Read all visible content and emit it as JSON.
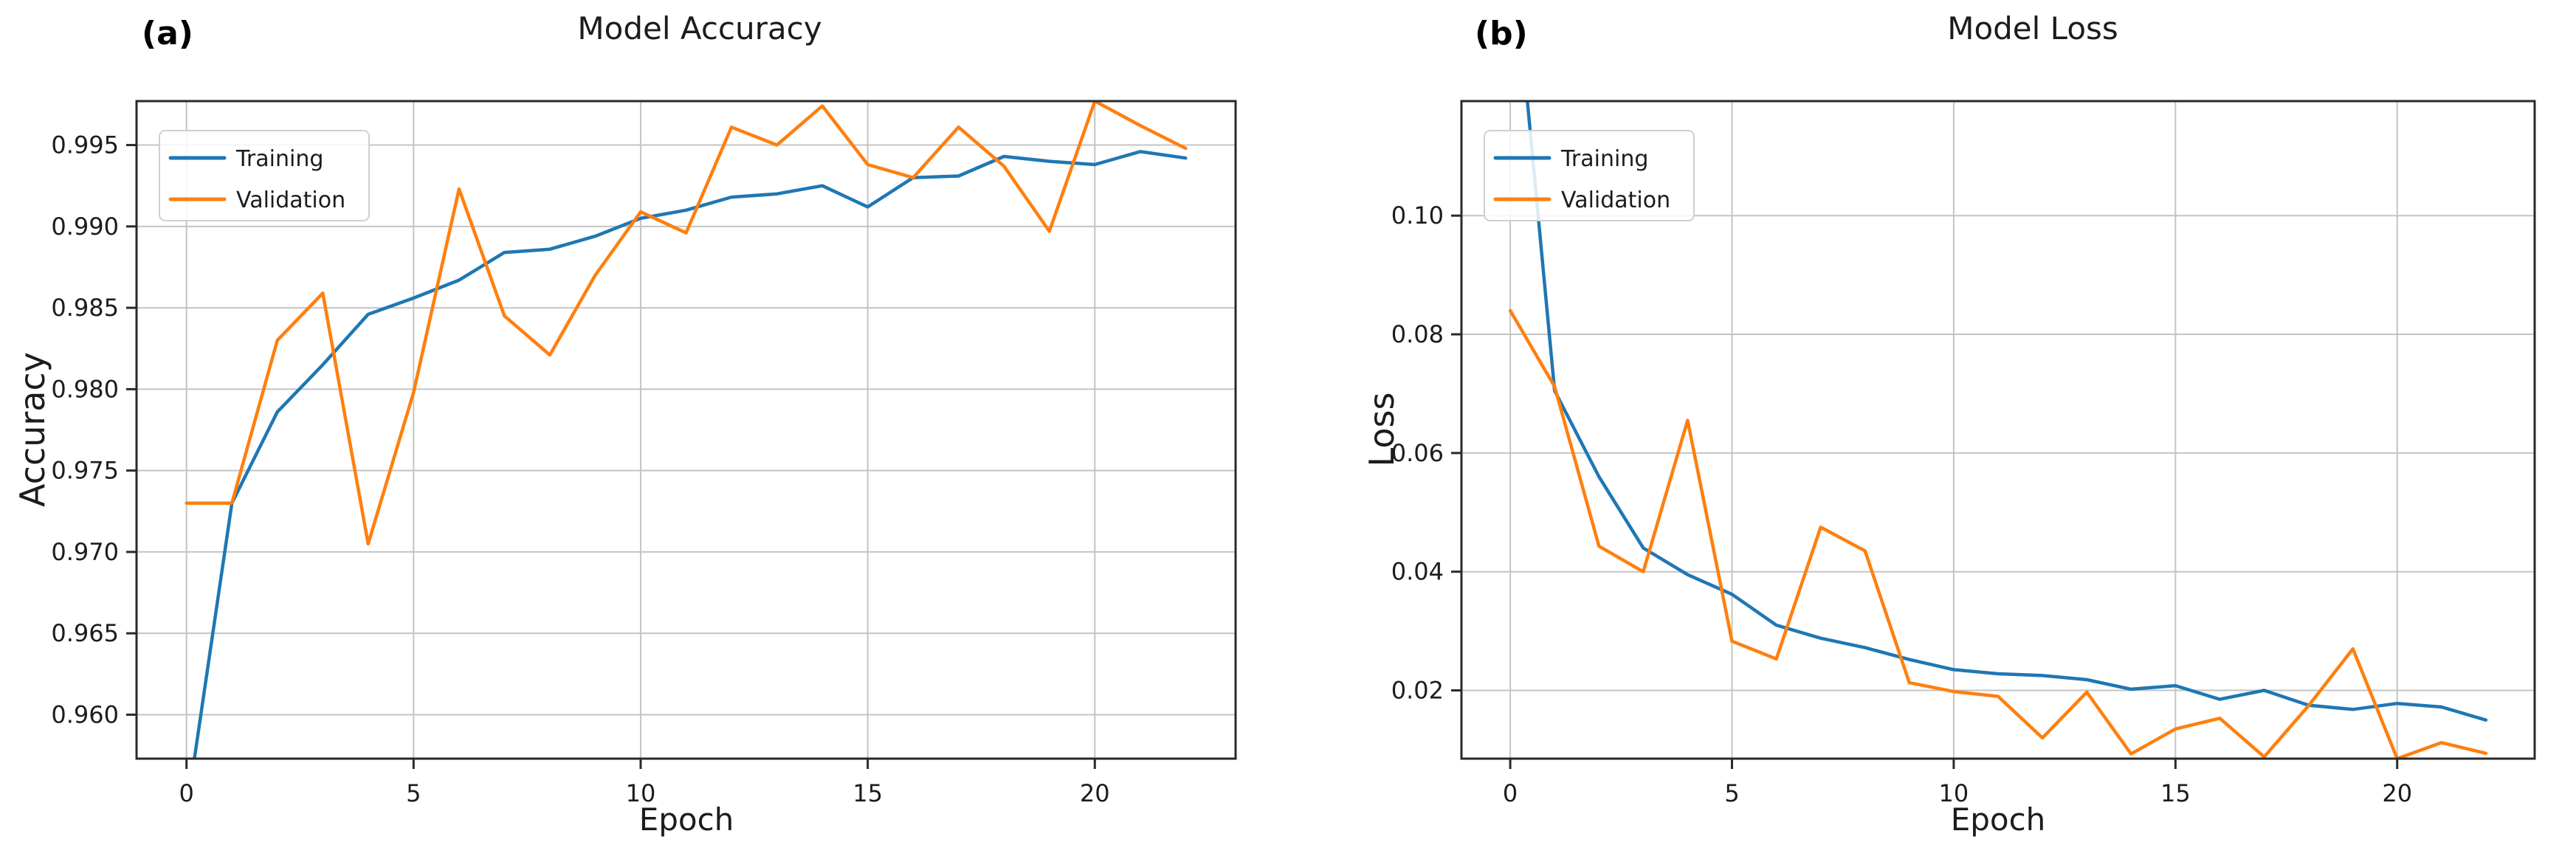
{
  "figure": {
    "background": "#ffffff",
    "text_color": "#1c1c1c",
    "grid_color": "#c4c4c4",
    "spine_color": "#2a2a2a",
    "series_colors": {
      "Training": "#1f77b4",
      "Validation": "#ff7f0e"
    },
    "legend": {
      "labels": [
        "Training",
        "Validation"
      ],
      "position": "upper left"
    }
  },
  "chart_data": [
    {
      "id": "accuracy",
      "type": "line",
      "panel_label": "(a)",
      "title": "Model Accuracy",
      "xlabel": "Epoch",
      "ylabel": "Accuracy",
      "x": [
        0,
        1,
        2,
        3,
        4,
        5,
        6,
        7,
        8,
        9,
        10,
        11,
        12,
        13,
        14,
        15,
        16,
        17,
        18,
        19,
        20,
        21,
        22
      ],
      "series": [
        {
          "name": "Training",
          "values": [
            0.954,
            0.973,
            0.9786,
            0.9815,
            0.9846,
            0.9856,
            0.9867,
            0.9884,
            0.9886,
            0.9894,
            0.9905,
            0.991,
            0.9918,
            0.992,
            0.9925,
            0.9912,
            0.993,
            0.9931,
            0.9943,
            0.994,
            0.9938,
            0.9946,
            0.9942
          ]
        },
        {
          "name": "Validation",
          "values": [
            0.973,
            0.973,
            0.983,
            0.9859,
            0.9705,
            0.9798,
            0.9923,
            0.9845,
            0.9821,
            0.987,
            0.9909,
            0.9896,
            0.9961,
            0.995,
            0.9974,
            0.9938,
            0.993,
            0.9961,
            0.9937,
            0.9897,
            0.9977,
            0.9962,
            0.9948
          ]
        }
      ],
      "xlim": [
        -1.1,
        23.1
      ],
      "ylim": [
        0.9573,
        0.9977
      ],
      "xticks": [
        0,
        5,
        10,
        15,
        20
      ],
      "xtick_labels": [
        "0",
        "5",
        "10",
        "15",
        "20"
      ],
      "yticks": [
        0.96,
        0.965,
        0.97,
        0.975,
        0.98,
        0.985,
        0.99,
        0.995
      ],
      "ytick_labels": [
        "0.960",
        "0.965",
        "0.970",
        "0.975",
        "0.980",
        "0.985",
        "0.990",
        "0.995"
      ],
      "grid": true,
      "legend_position": "upper left"
    },
    {
      "id": "loss",
      "type": "line",
      "panel_label": "(b)",
      "title": "Model Loss",
      "xlabel": "Epoch",
      "ylabel": "Loss",
      "x": [
        0,
        1,
        2,
        3,
        4,
        5,
        6,
        7,
        8,
        9,
        10,
        11,
        12,
        13,
        14,
        15,
        16,
        17,
        18,
        19,
        20,
        21,
        22
      ],
      "series": [
        {
          "name": "Training",
          "values": [
            0.15,
            0.0705,
            0.056,
            0.044,
            0.0395,
            0.0362,
            0.031,
            0.0288,
            0.0272,
            0.0252,
            0.0235,
            0.0228,
            0.0225,
            0.0218,
            0.0202,
            0.0208,
            0.0185,
            0.02,
            0.0175,
            0.0168,
            0.0178,
            0.0172,
            0.015
          ]
        },
        {
          "name": "Validation",
          "values": [
            0.084,
            0.0712,
            0.0443,
            0.04,
            0.0655,
            0.0283,
            0.0253,
            0.0475,
            0.0435,
            0.0213,
            0.0198,
            0.019,
            0.012,
            0.0197,
            0.0093,
            0.0135,
            0.0153,
            0.0088,
            0.0174,
            0.027,
            0.0085,
            0.0112,
            0.0094
          ]
        }
      ],
      "xlim": [
        -1.1,
        23.1
      ],
      "ylim": [
        0.0085,
        0.1193
      ],
      "xticks": [
        0,
        5,
        10,
        15,
        20
      ],
      "xtick_labels": [
        "0",
        "5",
        "10",
        "15",
        "20"
      ],
      "yticks": [
        0.02,
        0.04,
        0.06,
        0.08,
        0.1
      ],
      "ytick_labels": [
        "0.02",
        "0.04",
        "0.06",
        "0.08",
        "0.10"
      ],
      "grid": true,
      "legend_position": "upper left"
    }
  ]
}
